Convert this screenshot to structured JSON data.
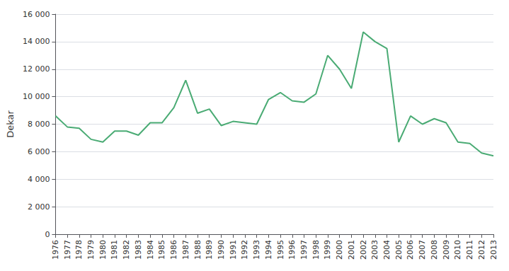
{
  "chart_data": {
    "type": "line",
    "x": [
      1976,
      1977,
      1978,
      1979,
      1980,
      1981,
      1982,
      1983,
      1984,
      1985,
      1986,
      1987,
      1988,
      1989,
      1990,
      1991,
      1992,
      1993,
      1994,
      1995,
      1996,
      1997,
      1998,
      1999,
      2000,
      2001,
      2002,
      2003,
      2004,
      2005,
      2006,
      2007,
      2008,
      2009,
      2010,
      2011,
      2012,
      2013
    ],
    "values": [
      8600,
      7800,
      7700,
      6900,
      6700,
      7500,
      7500,
      7200,
      8100,
      8100,
      9200,
      11200,
      8800,
      9100,
      7900,
      8200,
      8100,
      8000,
      9800,
      10300,
      9700,
      9600,
      10200,
      13000,
      12000,
      10600,
      14700,
      14000,
      13500,
      6700,
      8600,
      8000,
      8400,
      8100,
      6700,
      6600,
      5900,
      5700
    ],
    "color": "#4aab74",
    "ylabel": "Dekar",
    "xlim": [
      1976,
      2013
    ],
    "xticks": [
      1976,
      1977,
      1978,
      1979,
      1980,
      1981,
      1982,
      1983,
      1984,
      1985,
      1986,
      1987,
      1988,
      1989,
      1990,
      1991,
      1992,
      1993,
      1994,
      1995,
      1996,
      1997,
      1998,
      1999,
      2000,
      2001,
      2002,
      2003,
      2004,
      2005,
      2006,
      2007,
      2008,
      2009,
      2010,
      2011,
      2012,
      2013
    ],
    "ylim": [
      0,
      16000
    ],
    "yticks": [
      0,
      {
        "value": 2000,
        "label": "2 000"
      },
      {
        "value": 4000,
        "label": "4 000"
      },
      {
        "value": 6000,
        "label": "6 000"
      },
      {
        "value": 8000,
        "label": "8 000"
      },
      {
        "value": 10000,
        "label": "10 000"
      },
      {
        "value": 12000,
        "label": "12 000"
      },
      {
        "value": 14000,
        "label": "14 000"
      },
      {
        "value": 16000,
        "label": "16 000"
      }
    ],
    "grid": true
  }
}
